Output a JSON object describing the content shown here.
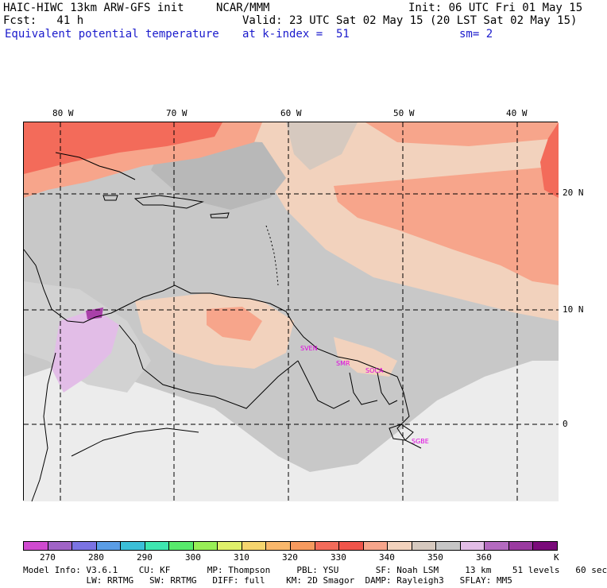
{
  "header": {
    "line1_left": "HAIC-HIWC 13km ARW-GFS init",
    "line1_mid": "NCAR/MMM",
    "line1_right": "Init: 06 UTC Fri 01 May 15",
    "fcst": "Fcst:   41 h",
    "valid": "Valid: 23 UTC Sat 02 May 15 (20 LST Sat 02 May 15)",
    "field": "Equivalent potential temperature",
    "level": "at k-index =  51",
    "smooth": "sm= 2"
  },
  "map": {
    "lon_labels": [
      "80 W",
      "70 W",
      "60 W",
      "50 W",
      "40 W"
    ],
    "lat_labels": [
      "20 N",
      "10 N",
      "0"
    ],
    "country_tags": [
      "SVEN",
      "SMR",
      "SOCA",
      "SGBE"
    ],
    "colors": {
      "frame": "#000000",
      "grid": "#000000",
      "gray_dark": "#b8b8b8",
      "gray_mid": "#c8c8c8",
      "gray_light": "#e6e6e6",
      "white_ish": "#f2f2f2",
      "peach": "#f2d2bd",
      "salmon": "#f7a58b",
      "red_orange": "#f36b5a",
      "lavender": "#e2bde7",
      "purple": "#a940a9",
      "tag": "#e000e0"
    }
  },
  "colorbar": {
    "colors": [
      "#d04ad0",
      "#a063c6",
      "#7b73e3",
      "#5a9de6",
      "#3bbfd8",
      "#3ee6b0",
      "#57ea6c",
      "#98ee56",
      "#dff06a",
      "#f6d56e",
      "#f9b76b",
      "#f79a5e",
      "#f36b5a",
      "#f0544a",
      "#f7a58b",
      "#f2d2bd",
      "#d6c9bf",
      "#c6c6c6",
      "#e2bde7",
      "#b46ac0",
      "#9a3aa0",
      "#7a0a7a"
    ],
    "labels": [
      "270",
      "280",
      "290",
      "300",
      "310",
      "320",
      "330",
      "340",
      "350",
      "360"
    ],
    "unit": "K"
  },
  "model_info": {
    "line1": "Model Info: V3.6.1    CU: KF       MP: Thompson     PBL: YSU       SF: Noah LSM     13 km    51 levels   60 sec",
    "line2": "            LW: RRTMG   SW: RRTMG   DIFF: full    KM: 2D Smagor  DAMP: Rayleigh3   SFLAY: MM5"
  }
}
